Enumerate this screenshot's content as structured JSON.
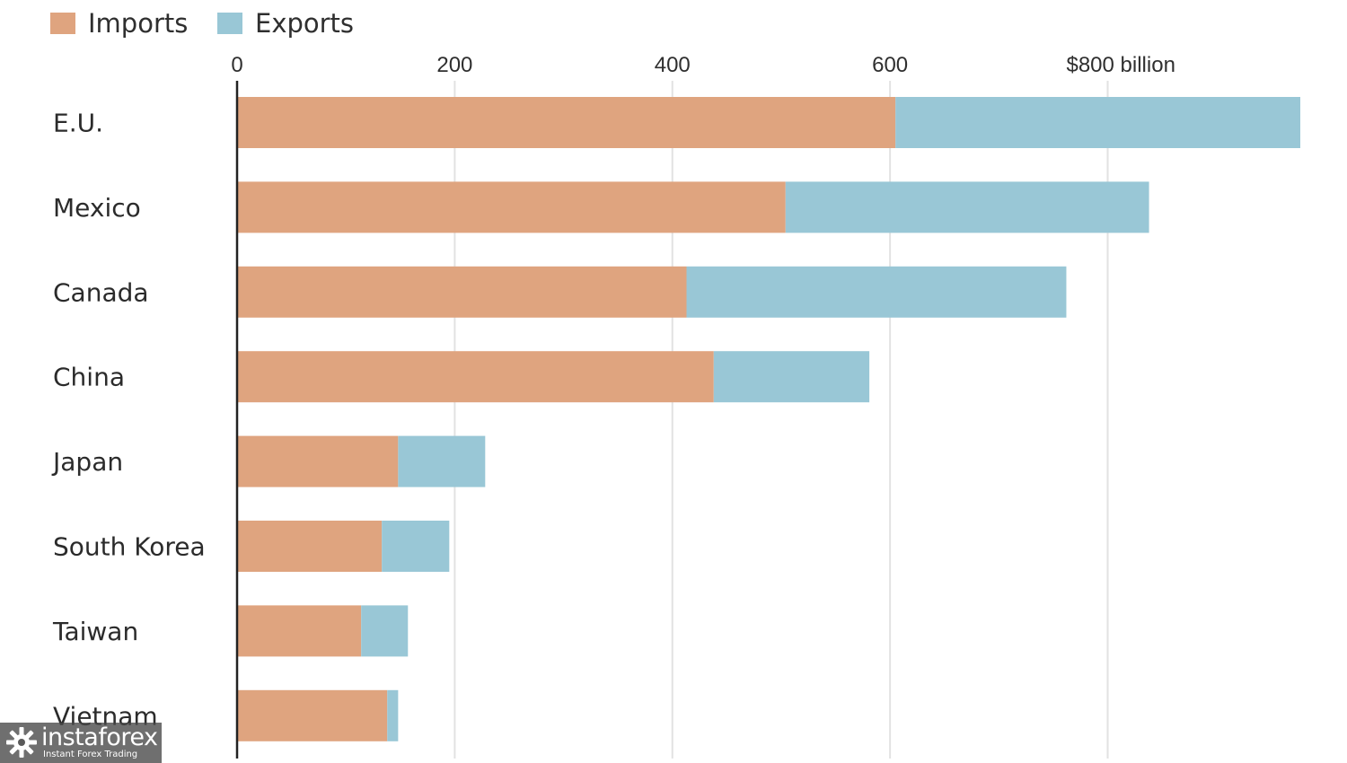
{
  "chart_data": {
    "type": "bar",
    "orientation": "horizontal",
    "stacked": true,
    "title": "",
    "xlabel": "",
    "ylabel": "",
    "categories": [
      "E.U.",
      "Mexico",
      "Canada",
      "China",
      "Japan",
      "South Korea",
      "Taiwan",
      "Vietnam"
    ],
    "series": [
      {
        "name": "Imports",
        "color": "#dfa47f",
        "values": [
          605,
          504,
          413,
          438,
          148,
          133,
          114,
          138
        ]
      },
      {
        "name": "Exports",
        "color": "#99c7d6",
        "values": [
          372,
          334,
          349,
          143,
          80,
          62,
          43,
          10
        ]
      }
    ],
    "x_ticks": [
      {
        "value": 0,
        "label": "0"
      },
      {
        "value": 200,
        "label": "200"
      },
      {
        "value": 400,
        "label": "400"
      },
      {
        "value": 600,
        "label": "600"
      },
      {
        "value": 800,
        "label": "$800 billion"
      }
    ],
    "xlim": [
      0,
      977
    ],
    "grid": true,
    "legend_position": "top-left"
  },
  "watermark": {
    "name": "instaforex",
    "tagline": "Instant Forex Trading",
    "icon": "gear-logo-icon"
  }
}
